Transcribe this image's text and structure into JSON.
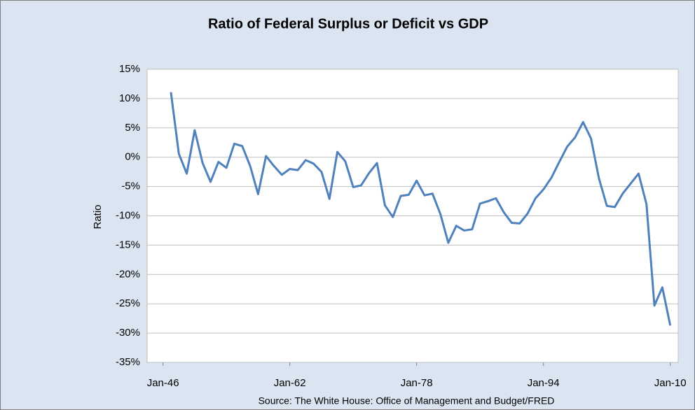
{
  "chart_data": {
    "type": "line",
    "title": "Ratio of Federal Surplus or Deficit vs GDP",
    "y_label": "Ratio",
    "source": "Source: The White House: Office of Management and Budget/FRED",
    "x": [
      1947,
      1948,
      1949,
      1950,
      1951,
      1952,
      1953,
      1954,
      1955,
      1956,
      1957,
      1958,
      1959,
      1960,
      1961,
      1962,
      1963,
      1964,
      1965,
      1966,
      1967,
      1968,
      1969,
      1970,
      1971,
      1972,
      1973,
      1974,
      1975,
      1976,
      1977,
      1978,
      1979,
      1980,
      1981,
      1982,
      1983,
      1984,
      1985,
      1986,
      1987,
      1988,
      1989,
      1990,
      1991,
      1992,
      1993,
      1994,
      1995,
      1996,
      1997,
      1998,
      1999,
      2000,
      2001,
      2002,
      2003,
      2004,
      2005,
      2006,
      2007,
      2008,
      2009,
      2010
    ],
    "series": [
      {
        "name": "Ratio",
        "color": "#4f81bd",
        "values": [
          11.1,
          0.6,
          -2.8,
          4.6,
          -1.0,
          -4.2,
          -0.8,
          -1.8,
          2.3,
          1.9,
          -1.5,
          -6.3,
          0.2,
          -1.5,
          -3.0,
          -2.0,
          -2.2,
          -0.5,
          -1.1,
          -2.5,
          -7.1,
          0.9,
          -0.7,
          -5.1,
          -4.8,
          -2.7,
          -1.0,
          -8.2,
          -10.2,
          -6.6,
          -6.4,
          -4.0,
          -6.5,
          -6.2,
          -9.7,
          -14.6,
          -11.7,
          -12.5,
          -12.3,
          -7.9,
          -7.5,
          -7.0,
          -9.4,
          -11.2,
          -11.3,
          -9.6,
          -7.0,
          -5.5,
          -3.5,
          -0.8,
          1.8,
          3.4,
          6.0,
          3.2,
          -3.6,
          -8.3,
          -8.5,
          -6.2,
          -4.5,
          -2.8,
          -8.0,
          -25.3,
          -22.2,
          -28.7
        ]
      }
    ],
    "xlim": [
      1944,
      2011
    ],
    "xticks": [
      {
        "value": 1946,
        "label": "Jan-46"
      },
      {
        "value": 1962,
        "label": "Jan-62"
      },
      {
        "value": 1978,
        "label": "Jan-78"
      },
      {
        "value": 1994,
        "label": "Jan-94"
      },
      {
        "value": 2010,
        "label": "Jan-10"
      }
    ],
    "ylim": [
      -35,
      15
    ],
    "yticks": [
      {
        "value": 15,
        "label": "15%"
      },
      {
        "value": 10,
        "label": "10%"
      },
      {
        "value": 5,
        "label": "5%"
      },
      {
        "value": 0,
        "label": "0%"
      },
      {
        "value": -5,
        "label": "-5%"
      },
      {
        "value": -10,
        "label": "-10%"
      },
      {
        "value": -15,
        "label": "-15%"
      },
      {
        "value": -20,
        "label": "-20%"
      },
      {
        "value": -25,
        "label": "-25%"
      },
      {
        "value": -30,
        "label": "-30%"
      },
      {
        "value": -35,
        "label": "-35%"
      }
    ],
    "grid": true
  }
}
